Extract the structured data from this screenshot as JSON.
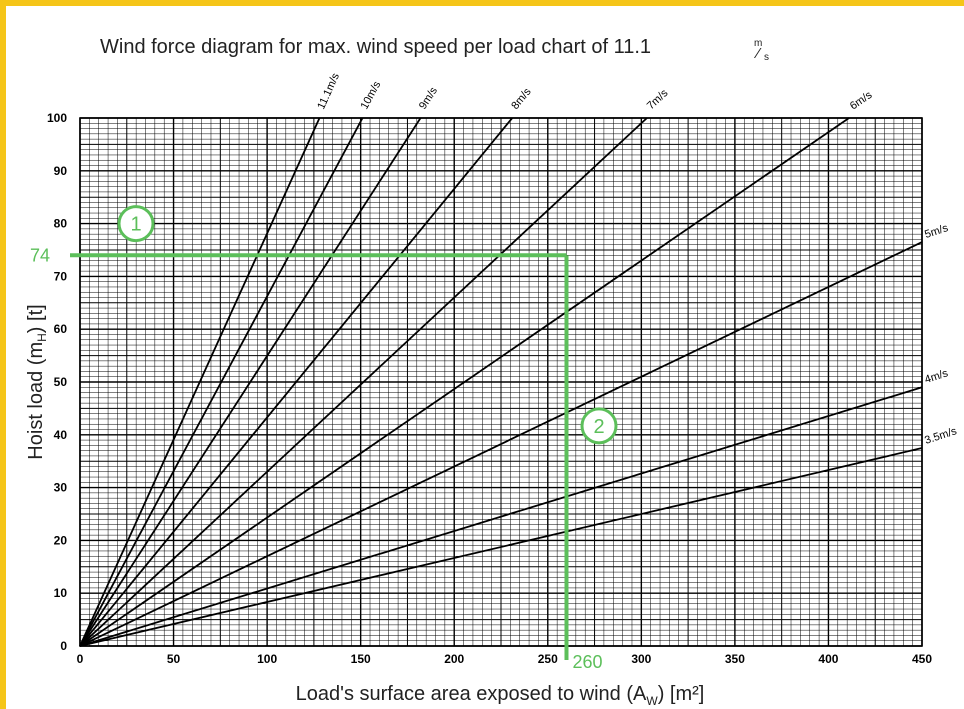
{
  "colors": {
    "frame": "#f5c518",
    "annotation": "#5cbf5a",
    "grid_major": "#000000",
    "grid_minor": "#000000"
  },
  "chart_data": {
    "type": "line",
    "title_main": "Wind force diagram for max. wind speed per load chart of 11.1",
    "title_unit_top": "m",
    "title_unit_bottom": "s",
    "ylabel_main": "Hoist load (m",
    "ylabel_sub": "H",
    "ylabel_end": ") [t]",
    "xlabel_main": "Load's surface area exposed to wind (A",
    "xlabel_sub": "W",
    "xlabel_end": ") [m²]",
    "xlim": [
      0,
      450
    ],
    "ylim": [
      0,
      100
    ],
    "xticks": [
      0,
      50,
      100,
      150,
      200,
      250,
      300,
      350,
      400,
      450
    ],
    "yticks": [
      0,
      10,
      20,
      30,
      40,
      50,
      60,
      70,
      80,
      90,
      100
    ],
    "grid": true,
    "series": [
      {
        "name": "11.1m/s",
        "values": [
          [
            0,
            0
          ],
          [
            128,
            100
          ]
        ]
      },
      {
        "name": "10m/s",
        "values": [
          [
            0,
            0
          ],
          [
            151,
            100
          ]
        ]
      },
      {
        "name": "9m/s",
        "values": [
          [
            0,
            0
          ],
          [
            182,
            100
          ]
        ]
      },
      {
        "name": "8m/s",
        "values": [
          [
            0,
            0
          ],
          [
            231,
            100
          ]
        ]
      },
      {
        "name": "7m/s",
        "values": [
          [
            0,
            0
          ],
          [
            303,
            100
          ]
        ]
      },
      {
        "name": "6m/s",
        "values": [
          [
            0,
            0
          ],
          [
            411,
            100
          ]
        ]
      },
      {
        "name": "5m/s",
        "values": [
          [
            0,
            0
          ],
          [
            450,
            76.5
          ]
        ]
      },
      {
        "name": "4m/s",
        "values": [
          [
            0,
            0
          ],
          [
            450,
            49
          ]
        ]
      },
      {
        "name": "3.5m/s",
        "values": [
          [
            0,
            0
          ],
          [
            450,
            37.5
          ]
        ]
      }
    ],
    "annotations": {
      "y_value_label": "74",
      "x_value_label": "260",
      "callout_1": "1",
      "callout_2": "2",
      "point": [
        260,
        74
      ]
    }
  }
}
